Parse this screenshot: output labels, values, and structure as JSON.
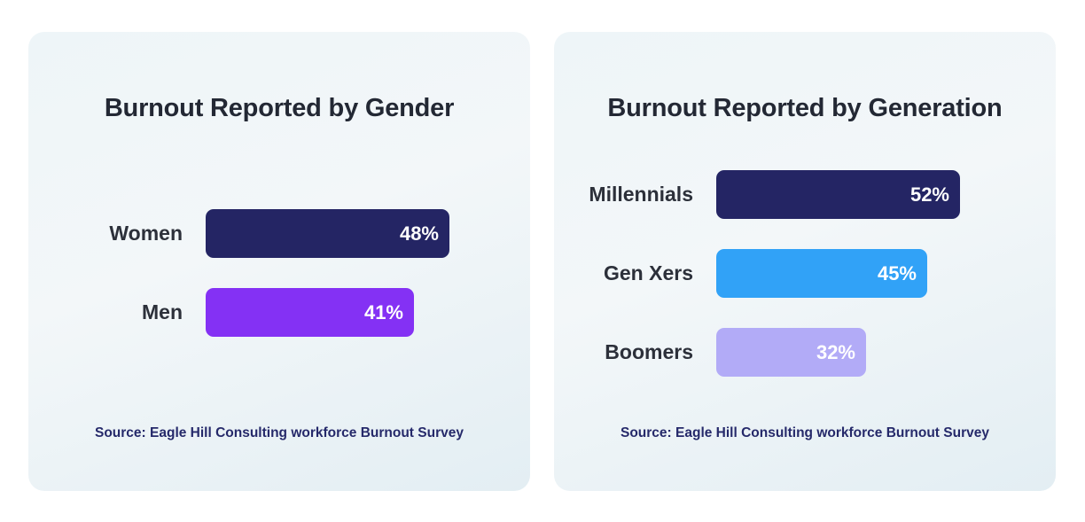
{
  "chart_data": [
    {
      "type": "bar",
      "orientation": "horizontal",
      "title": "Burnout Reported by Gender",
      "categories": [
        "Women",
        "Men"
      ],
      "values": [
        48,
        41
      ],
      "value_labels": [
        "48%",
        "41%"
      ],
      "colors": [
        "#242564",
        "#8431f4"
      ],
      "unit": "%",
      "source": "Source: Eagle Hill Consulting workforce Burnout Survey",
      "grid": false
    },
    {
      "type": "bar",
      "orientation": "horizontal",
      "title": "Burnout Reported by Generation",
      "categories": [
        "Millennials",
        "Gen Xers",
        "Boomers"
      ],
      "values": [
        52,
        45,
        32
      ],
      "value_labels": [
        "52%",
        "45%",
        "32%"
      ],
      "colors": [
        "#242564",
        "#31a2f7",
        "#b2abf7"
      ],
      "unit": "%",
      "source": "Source: Eagle Hill Consulting workforce Burnout Survey",
      "grid": false
    }
  ]
}
